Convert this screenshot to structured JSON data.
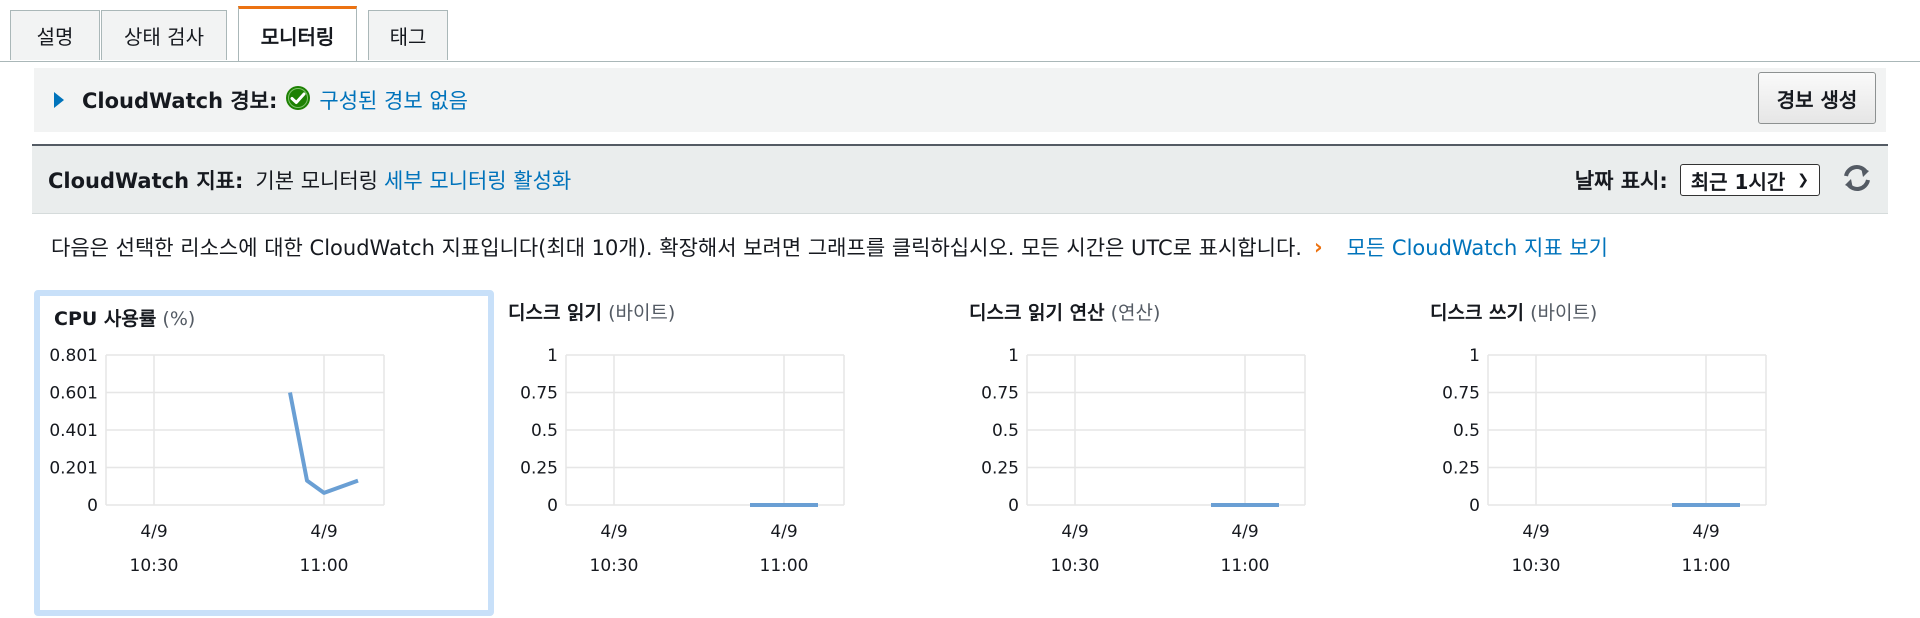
{
  "tabs": [
    {
      "label": "설명",
      "active": false
    },
    {
      "label": "상태 검사",
      "active": false
    },
    {
      "label": "모니터링",
      "active": true
    },
    {
      "label": "태그",
      "active": false
    }
  ],
  "alarms": {
    "title": "CloudWatch 경보:",
    "status": "구성된 경보 없음",
    "create_button": "경보 생성"
  },
  "metrics": {
    "title": "CloudWatch 지표:",
    "mode": "기본 모니터링",
    "detailed_link": "세부 모니터링 활성화",
    "date_label": "날짜 표시:",
    "date_range": "최근 1시간",
    "refresh_icon": "refresh-icon"
  },
  "info": {
    "text": "다음은 선택한 리소스에 대한 CloudWatch 지표입니다(최대 10개). 확장해서 보려면 그래프를 클릭하십시오. 모든 시간은 UTC로 표시합니다.",
    "view_all": "모든 CloudWatch 지표 보기"
  },
  "colors": {
    "line": "#6a9fd4",
    "accent": "#ec7211",
    "link": "#0073bb"
  },
  "chart_data": [
    {
      "type": "line",
      "title": "CPU 사용률",
      "unit": "(%)",
      "yticks": [
        "0.801",
        "0.601",
        "0.401",
        "0.201",
        "0"
      ],
      "ylim": [
        0,
        0.801
      ],
      "xticks": [
        {
          "date": "4/9",
          "time": "10:30"
        },
        {
          "date": "4/9",
          "time": "11:00"
        }
      ],
      "x": [
        "10:54",
        "10:57",
        "11:00",
        "11:06"
      ],
      "values": [
        0.601,
        0.13,
        0.065,
        0.13
      ]
    },
    {
      "type": "line",
      "title": "디스크 읽기",
      "unit": "(바이트)",
      "yticks": [
        "1",
        "0.75",
        "0.5",
        "0.25",
        "0"
      ],
      "ylim": [
        0,
        1
      ],
      "xticks": [
        {
          "date": "4/9",
          "time": "10:30"
        },
        {
          "date": "4/9",
          "time": "11:00"
        }
      ],
      "x": [
        "10:54",
        "11:06"
      ],
      "values": [
        0,
        0
      ]
    },
    {
      "type": "line",
      "title": "디스크 읽기 연산",
      "unit": "(연산)",
      "yticks": [
        "1",
        "0.75",
        "0.5",
        "0.25",
        "0"
      ],
      "ylim": [
        0,
        1
      ],
      "xticks": [
        {
          "date": "4/9",
          "time": "10:30"
        },
        {
          "date": "4/9",
          "time": "11:00"
        }
      ],
      "x": [
        "10:54",
        "11:06"
      ],
      "values": [
        0,
        0
      ]
    },
    {
      "type": "line",
      "title": "디스크 쓰기",
      "unit": "(바이트)",
      "yticks": [
        "1",
        "0.75",
        "0.5",
        "0.25",
        "0"
      ],
      "ylim": [
        0,
        1
      ],
      "xticks": [
        {
          "date": "4/9",
          "time": "10:30"
        },
        {
          "date": "4/9",
          "time": "11:00"
        }
      ],
      "x": [
        "10:54",
        "11:06"
      ],
      "values": [
        0,
        0
      ]
    }
  ]
}
